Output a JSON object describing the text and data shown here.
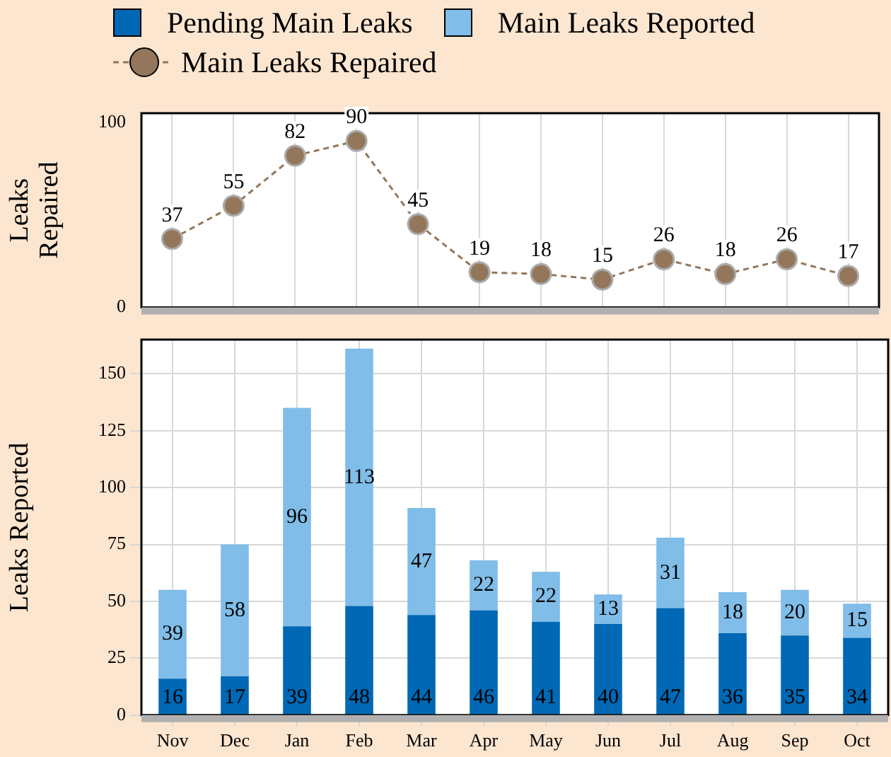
{
  "chart_data": [
    {
      "type": "line",
      "ylabel": "Leaks Repaired",
      "categories": [
        null,
        null,
        null,
        null,
        null,
        null,
        null,
        null,
        null,
        null,
        null,
        null
      ],
      "series": [
        {
          "name": "Main Leaks Repaired",
          "color": "#94765a",
          "values": [
            37,
            55,
            82,
            90,
            45,
            19,
            18,
            15,
            26,
            18,
            26,
            17
          ]
        }
      ],
      "ylim": [
        0,
        105
      ],
      "yticks": [
        0,
        100
      ],
      "grid": "x",
      "tick_labels": "y",
      "marker": "circle",
      "line_style": "dashed",
      "data_labels": true,
      "legend": "top"
    },
    {
      "type": "bar",
      "ylabel": "Leaks Reported",
      "categories": [
        "Nov",
        "Dec",
        "Jan",
        "Feb",
        "Mar",
        "Apr",
        "May",
        "Jun",
        "Jul",
        "Aug",
        "Sep",
        "Oct"
      ],
      "series": [
        {
          "name": "Pending Main Leaks",
          "color": "#0068b4",
          "values": [
            16,
            17,
            39,
            48,
            44,
            46,
            41,
            40,
            47,
            36,
            35,
            34
          ]
        },
        {
          "name": "Main Leaks Reported",
          "color": "#80bde8",
          "values": [
            39,
            58,
            96,
            113,
            47,
            22,
            22,
            13,
            31,
            18,
            20,
            15
          ]
        }
      ],
      "stacked": true,
      "ylim": [
        0,
        165
      ],
      "yticks": [
        0,
        25,
        50,
        75,
        100,
        125,
        150
      ],
      "grid": true,
      "data_labels": true,
      "legend": "top"
    }
  ]
}
